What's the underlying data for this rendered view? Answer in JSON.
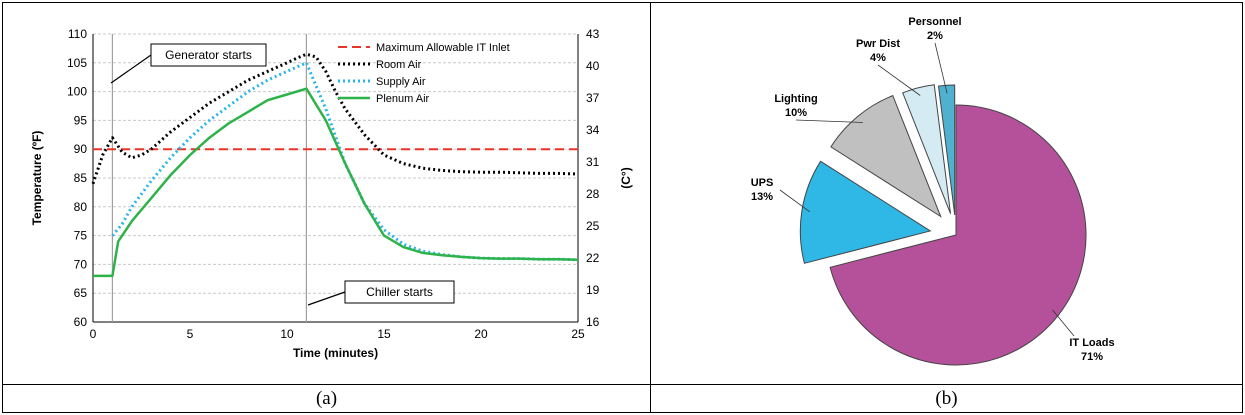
{
  "captions": {
    "a": "(a)",
    "b": "(b)"
  },
  "chart_data": [
    {
      "type": "line",
      "xlabel": "Time (minutes)",
      "ylabel": "Temperature (ºF)",
      "y2label": "(C°)",
      "xlim": [
        0,
        25
      ],
      "ylim": [
        60,
        110
      ],
      "xticks": [
        "0",
        "5",
        "10",
        "15",
        "20",
        "25"
      ],
      "yticks": [
        "60",
        "65",
        "70",
        "75",
        "80",
        "85",
        "90",
        "95",
        "100",
        "105",
        "110"
      ],
      "y2ticks": [
        "16",
        "19",
        "22",
        "25",
        "28",
        "31",
        "34",
        "37",
        "40",
        "43"
      ],
      "grid": true,
      "legend_position": "top-right",
      "annotations": [
        {
          "text": "Generator starts",
          "x": 1
        },
        {
          "text": "Chiller starts",
          "x": 11
        }
      ],
      "vlines": [
        1,
        11
      ],
      "series": [
        {
          "name": "Maximum Allowable IT Inlet",
          "color": "#e8352a",
          "style": "dashed",
          "x": [
            0,
            25
          ],
          "y": [
            90,
            90
          ]
        },
        {
          "name": "Room Air",
          "color": "#000000",
          "style": "dotted",
          "x": [
            0,
            0.5,
            1,
            1.5,
            2,
            2.5,
            3,
            4,
            5,
            6,
            7,
            8,
            9,
            10,
            10.5,
            11,
            11.5,
            12,
            12.5,
            13,
            14,
            15,
            16,
            17,
            18,
            19,
            20,
            21,
            22,
            23,
            24,
            25
          ],
          "y": [
            84,
            89,
            92,
            89.5,
            88.5,
            89,
            90,
            93,
            95.5,
            98,
            100,
            102,
            103.5,
            105,
            105.8,
            106.5,
            106,
            103.5,
            100,
            97,
            92.5,
            89,
            87.5,
            86.7,
            86.3,
            86.1,
            86,
            86,
            85.9,
            85.8,
            85.8,
            85.7
          ]
        },
        {
          "name": "Supply Air",
          "color": "#2ab4e8",
          "style": "dotted",
          "x": [
            1,
            1.5,
            2,
            3,
            4,
            5,
            6,
            7,
            8,
            9,
            10,
            11,
            12,
            13,
            14,
            15,
            16,
            17,
            18,
            19,
            20,
            21,
            22,
            23,
            24,
            25
          ],
          "y": [
            75,
            77,
            80,
            84.5,
            88.5,
            92,
            95,
            97.5,
            100,
            102,
            103.5,
            105,
            97,
            87.5,
            80.5,
            76,
            73.5,
            72.3,
            71.7,
            71.3,
            71.1,
            71,
            71,
            70.9,
            70.9,
            70.8
          ]
        },
        {
          "name": "Plenum Air",
          "color": "#2eb24a",
          "style": "solid",
          "x": [
            0,
            1,
            1.3,
            2,
            3,
            4,
            5,
            6,
            7,
            8,
            9,
            10,
            11,
            12,
            13,
            14,
            15,
            16,
            17,
            18,
            19,
            20,
            21,
            22,
            23,
            24,
            25
          ],
          "y": [
            68,
            68,
            74,
            77.5,
            81.5,
            85.5,
            89,
            92,
            94.5,
            96.5,
            98.5,
            99.5,
            100.5,
            95,
            87.5,
            80.5,
            75,
            73,
            72,
            71.6,
            71.3,
            71.1,
            71,
            71,
            70.9,
            70.9,
            70.8
          ]
        }
      ]
    },
    {
      "type": "pie",
      "slices": [
        {
          "label": "IT Loads",
          "pct": "71%",
          "value": 71,
          "color": "#b5519a"
        },
        {
          "label": "UPS",
          "pct": "13%",
          "value": 13,
          "color": "#2fb8e6"
        },
        {
          "label": "Lighting",
          "pct": "10%",
          "value": 10,
          "color": "#c0c0c0"
        },
        {
          "label": "Pwr Dist",
          "pct": "4%",
          "value": 4,
          "color": "#d4ebf4"
        },
        {
          "label": "Personnel",
          "pct": "2%",
          "value": 2,
          "color": "#4fb0cf"
        }
      ]
    }
  ]
}
